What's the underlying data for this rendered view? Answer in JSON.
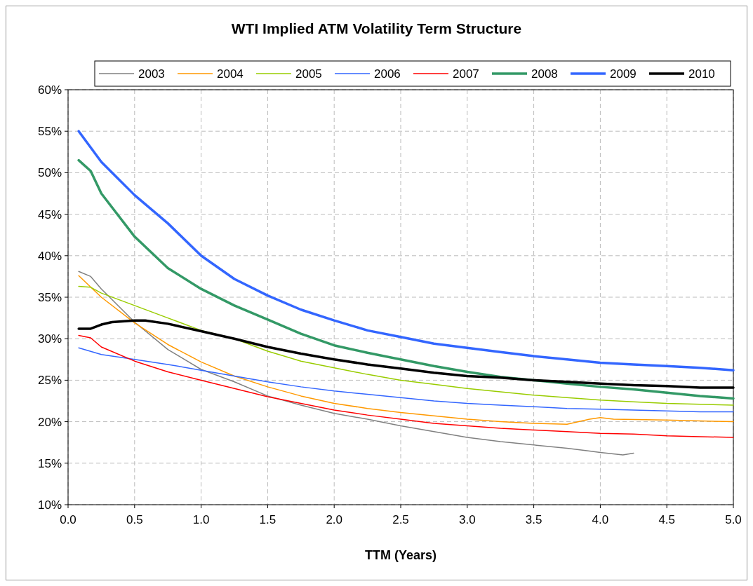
{
  "chart_data": {
    "type": "line",
    "title": "WTI Implied ATM Volatility Term Structure",
    "xlabel": "TTM (Years)",
    "xlim": [
      0,
      5
    ],
    "xticks": [
      {
        "value": 0,
        "label": "0.0"
      },
      {
        "value": 0.5,
        "label": "0.5"
      },
      {
        "value": 1,
        "label": "1.0"
      },
      {
        "value": 1.5,
        "label": "1.5"
      },
      {
        "value": 2,
        "label": "2.0"
      },
      {
        "value": 2.5,
        "label": "2.5"
      },
      {
        "value": 3,
        "label": "3.0"
      },
      {
        "value": 3.5,
        "label": "3.5"
      },
      {
        "value": 4,
        "label": "4.0"
      },
      {
        "value": 4.5,
        "label": "4.5"
      },
      {
        "value": 5,
        "label": "5.0"
      }
    ],
    "ylim": [
      10,
      60
    ],
    "yticks": [
      {
        "value": 10,
        "label": "10%"
      },
      {
        "value": 15,
        "label": "15%"
      },
      {
        "value": 20,
        "label": "20%"
      },
      {
        "value": 25,
        "label": "25%"
      },
      {
        "value": 30,
        "label": "30%"
      },
      {
        "value": 35,
        "label": "35%"
      },
      {
        "value": 40,
        "label": "40%"
      },
      {
        "value": 45,
        "label": "45%"
      },
      {
        "value": 50,
        "label": "50%"
      },
      {
        "value": 55,
        "label": "55%"
      },
      {
        "value": 60,
        "label": "60%"
      }
    ],
    "grid": true,
    "legend": "top",
    "marker": "none",
    "line_style": "solid",
    "series": [
      {
        "name": "2003",
        "color": "#808080",
        "x": [
          0.08,
          0.17,
          0.25,
          0.5,
          0.75,
          1,
          1.25,
          1.5,
          1.75,
          2,
          2.25,
          2.5,
          2.75,
          3,
          3.25,
          3.5,
          3.75,
          3.9,
          4,
          4.17,
          4.25
        ],
        "values": [
          38.1,
          37.5,
          36,
          32,
          28.7,
          26.3,
          24.8,
          23.1,
          22,
          21,
          20.3,
          19.5,
          18.8,
          18.1,
          17.6,
          17.2,
          16.8,
          16.5,
          16.3,
          16,
          16.2
        ]
      },
      {
        "name": "2004",
        "color": "#ff9900",
        "x": [
          0.08,
          0.25,
          0.5,
          0.75,
          1,
          1.25,
          1.5,
          1.75,
          2,
          2.25,
          2.5,
          2.75,
          3,
          3.25,
          3.5,
          3.75,
          3.92,
          4,
          4.1,
          4.5,
          4.75,
          5
        ],
        "values": [
          37.6,
          35,
          31.9,
          29.3,
          27.2,
          25.5,
          24.2,
          23.1,
          22.2,
          21.6,
          21.1,
          20.7,
          20.3,
          20,
          19.8,
          19.7,
          20.3,
          20.5,
          20.3,
          20.2,
          20.1,
          20
        ]
      },
      {
        "name": "2005",
        "color": "#99cc00",
        "x": [
          0.08,
          0.17,
          0.25,
          0.5,
          0.75,
          1,
          1.25,
          1.5,
          1.75,
          2,
          2.25,
          2.5,
          2.75,
          3,
          3.25,
          3.5,
          3.75,
          4,
          4.25,
          4.5,
          4.75,
          5
        ],
        "values": [
          36.3,
          36.2,
          35.5,
          34,
          32.5,
          31,
          30,
          28.5,
          27.3,
          26.5,
          25.7,
          25,
          24.5,
          24,
          23.6,
          23.2,
          22.9,
          22.6,
          22.4,
          22.2,
          22.1,
          22
        ]
      },
      {
        "name": "2006",
        "color": "#3366ff",
        "x": [
          0.08,
          0.25,
          0.5,
          0.75,
          1,
          1.25,
          1.5,
          1.75,
          2,
          2.25,
          2.5,
          2.75,
          3,
          3.25,
          3.5,
          3.75,
          4,
          4.25,
          4.5,
          4.75,
          5
        ],
        "values": [
          28.9,
          28.1,
          27.5,
          26.9,
          26.2,
          25.5,
          24.8,
          24.2,
          23.7,
          23.3,
          22.9,
          22.5,
          22.2,
          22,
          21.8,
          21.6,
          21.5,
          21.4,
          21.3,
          21.2,
          21.2
        ]
      },
      {
        "name": "2007",
        "color": "#ff0000",
        "x": [
          0.08,
          0.17,
          0.25,
          0.5,
          0.75,
          1,
          1.25,
          1.5,
          1.75,
          2,
          2.25,
          2.5,
          2.75,
          3,
          3.25,
          3.5,
          3.75,
          4,
          4.25,
          4.5,
          4.75,
          5
        ],
        "values": [
          30.4,
          30.1,
          29,
          27.3,
          26,
          25,
          24,
          23,
          22.2,
          21.4,
          20.8,
          20.3,
          19.8,
          19.5,
          19.2,
          19,
          18.8,
          18.6,
          18.5,
          18.3,
          18.2,
          18.1
        ]
      },
      {
        "name": "2008",
        "color": "#339966",
        "x": [
          0.08,
          0.17,
          0.25,
          0.5,
          0.75,
          1,
          1.25,
          1.5,
          1.75,
          2,
          2.25,
          2.5,
          2.75,
          3,
          3.25,
          3.5,
          3.75,
          4,
          4.25,
          4.5,
          4.75,
          5
        ],
        "values": [
          51.5,
          50.2,
          47.5,
          42.3,
          38.5,
          36,
          34,
          32.3,
          30.6,
          29.2,
          28.3,
          27.5,
          26.7,
          26,
          25.4,
          25,
          24.6,
          24.2,
          23.9,
          23.5,
          23.1,
          22.8
        ]
      },
      {
        "name": "2009",
        "color": "#3366ff",
        "x": [
          0.08,
          0.25,
          0.5,
          0.75,
          1,
          1.25,
          1.5,
          1.75,
          2,
          2.25,
          2.5,
          2.75,
          3,
          3.25,
          3.5,
          3.75,
          4,
          4.25,
          4.5,
          4.75,
          5
        ],
        "values": [
          55,
          51.3,
          47.3,
          43.9,
          40,
          37.2,
          35.2,
          33.5,
          32.2,
          31,
          30.2,
          29.4,
          28.9,
          28.4,
          27.9,
          27.5,
          27.1,
          26.9,
          26.7,
          26.5,
          26.2
        ]
      },
      {
        "name": "2010",
        "color": "#000000",
        "x": [
          0.08,
          0.17,
          0.25,
          0.33,
          0.5,
          0.58,
          0.75,
          1,
          1.25,
          1.5,
          1.75,
          2,
          2.25,
          2.5,
          2.75,
          3,
          3.25,
          3.5,
          3.75,
          4,
          4.25,
          4.5,
          4.75,
          5
        ],
        "values": [
          31.2,
          31.2,
          31.7,
          32,
          32.2,
          32.2,
          31.8,
          30.9,
          30,
          29,
          28.2,
          27.5,
          26.9,
          26.4,
          25.9,
          25.5,
          25.3,
          25,
          24.8,
          24.6,
          24.4,
          24.3,
          24.1,
          24.1
        ]
      }
    ]
  }
}
